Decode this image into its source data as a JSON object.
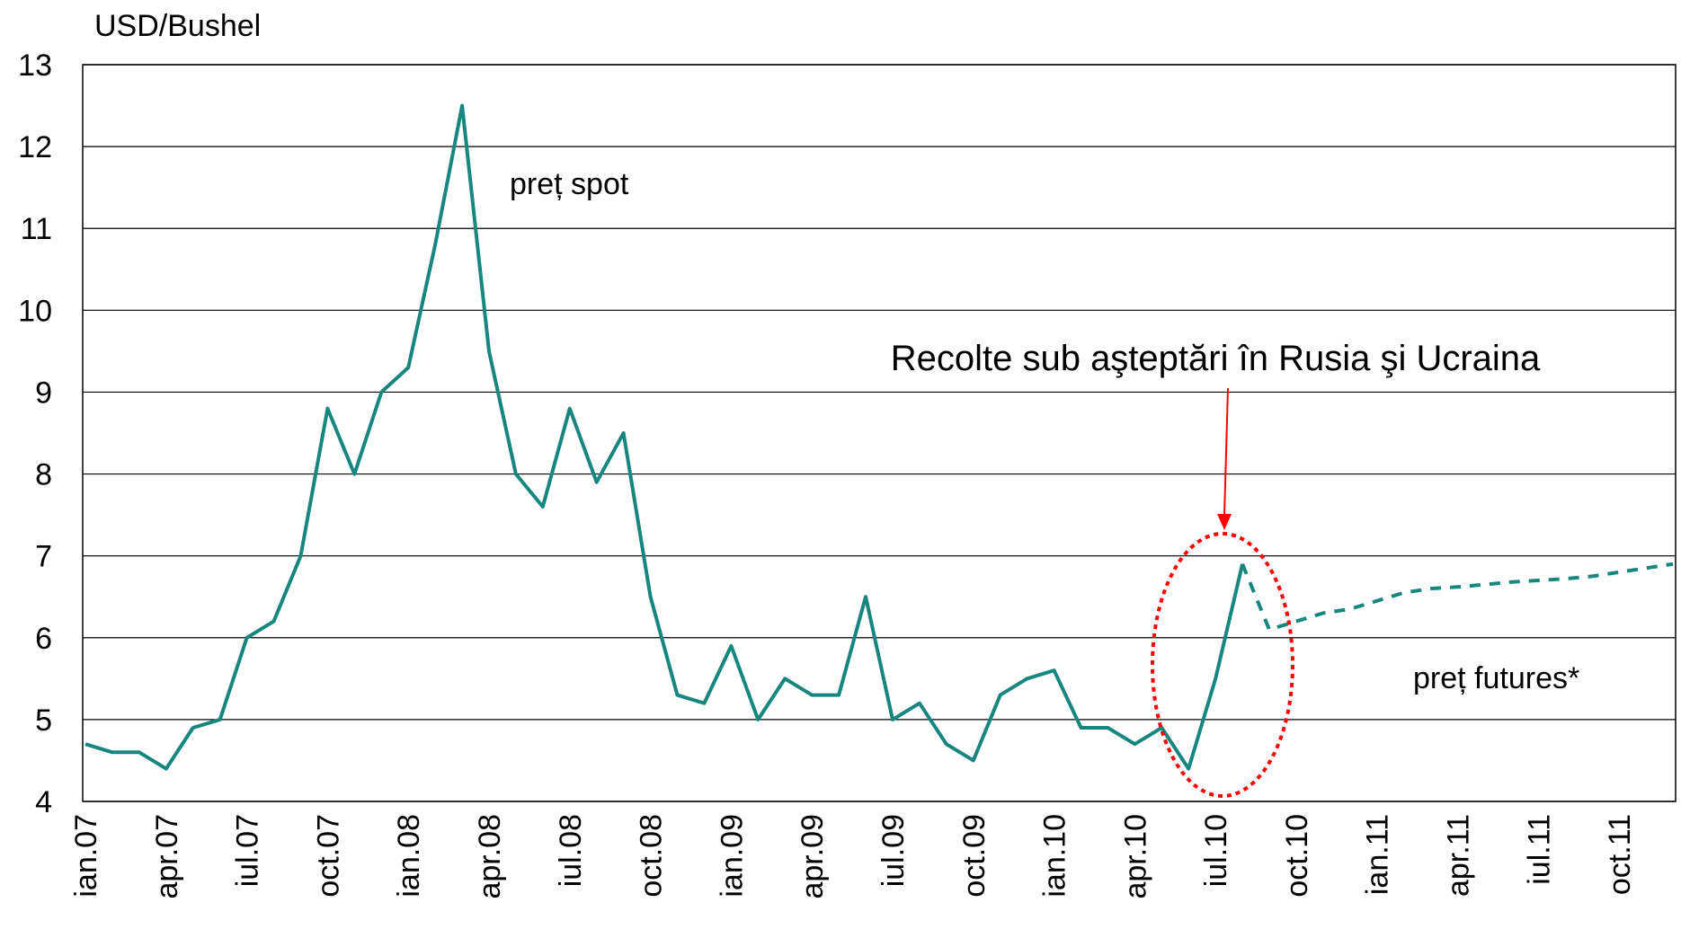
{
  "chart_data": {
    "type": "line",
    "y_label": "USD/Bushel",
    "categories": [
      "ian.07",
      null,
      null,
      "apr.07",
      null,
      null,
      "iul.07",
      null,
      null,
      "oct.07",
      null,
      null,
      "ian.08",
      null,
      null,
      "apr.08",
      null,
      null,
      "iul.08",
      null,
      null,
      "oct.08",
      null,
      null,
      "ian.09",
      null,
      null,
      "apr.09",
      null,
      null,
      "iul.09",
      null,
      null,
      "oct.09",
      null,
      null,
      "ian.10",
      null,
      null,
      "apr.10",
      null,
      null,
      "iul.10",
      null,
      null,
      "oct.10",
      null,
      null,
      "ian.11",
      null,
      null,
      "apr.11",
      null,
      null,
      "iul.11",
      null,
      null,
      "oct.11",
      null,
      null
    ],
    "series": [
      {
        "name": "preț spot",
        "color": "#17867f",
        "dashed": false,
        "values": [
          4.7,
          4.6,
          4.6,
          4.4,
          4.9,
          5.0,
          6.0,
          6.2,
          7.0,
          8.8,
          8.0,
          9.0,
          9.3,
          10.8,
          12.5,
          9.5,
          8.0,
          7.6,
          8.8,
          7.9,
          8.5,
          6.5,
          5.3,
          5.2,
          5.9,
          5.0,
          5.5,
          5.3,
          5.3,
          6.5,
          5.0,
          5.2,
          4.7,
          4.5,
          5.3,
          5.5,
          5.6,
          4.9,
          4.9,
          4.7,
          4.9,
          4.4,
          5.5,
          6.9,
          null,
          null,
          null,
          null,
          null,
          null,
          null,
          null,
          null,
          null,
          null,
          null,
          null,
          null,
          null,
          null
        ]
      },
      {
        "name": "preț futures*",
        "color": "#17867f",
        "dashed": true,
        "values": [
          null,
          null,
          null,
          null,
          null,
          null,
          null,
          null,
          null,
          null,
          null,
          null,
          null,
          null,
          null,
          null,
          null,
          null,
          null,
          null,
          null,
          null,
          null,
          null,
          null,
          null,
          null,
          null,
          null,
          null,
          null,
          null,
          null,
          null,
          null,
          null,
          null,
          null,
          null,
          null,
          null,
          null,
          null,
          6.9,
          6.1,
          6.2,
          6.3,
          6.35,
          6.45,
          6.55,
          6.6,
          6.62,
          6.65,
          6.68,
          6.7,
          6.72,
          6.75,
          6.8,
          6.85,
          6.9
        ]
      }
    ],
    "annotation": "Recolte sub aşteptări în Rusia şi Ucraina",
    "annotation_color": "#ff0000",
    "ylim": [
      4,
      13
    ],
    "yticks": [
      4,
      5,
      6,
      7,
      8,
      9,
      10,
      11,
      12,
      13
    ],
    "grid": true
  }
}
